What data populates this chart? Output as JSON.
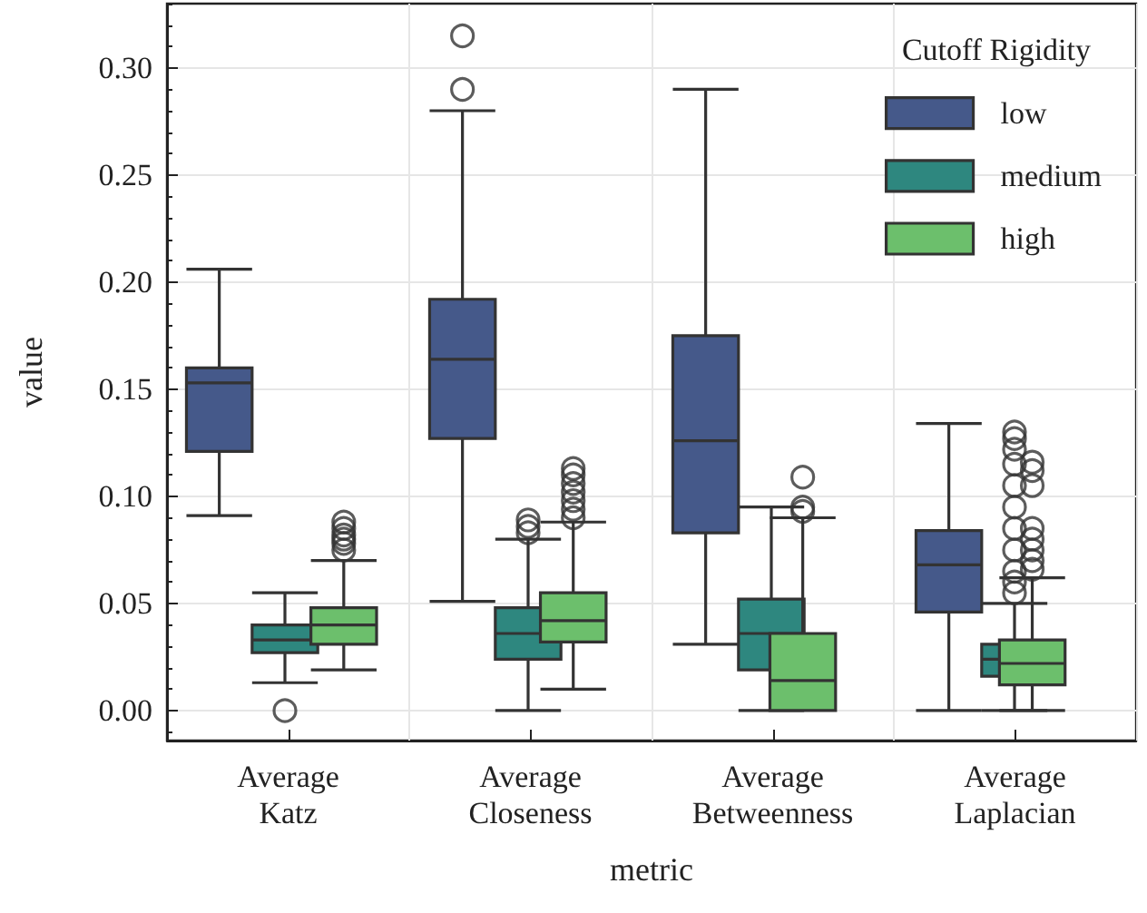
{
  "chart_data": {
    "type": "box",
    "xlabel": "metric",
    "ylabel": "value",
    "legend_title": "Cutoff Rigidity",
    "categories": [
      "Average\nKatz",
      "Average\nCloseness",
      "Average\nBetweenness",
      "Average\nLaplacian"
    ],
    "ylim": [
      -0.014,
      0.33
    ],
    "yticks": [
      {
        "value": 0,
        "label": "0.00"
      },
      0.05,
      {
        "value": 0.1,
        "label": "0.10"
      },
      0.15,
      {
        "value": 0.2,
        "label": "0.20"
      },
      0.25,
      {
        "value": 0.3,
        "label": "0.30"
      }
    ],
    "grid": true,
    "legend": "top right",
    "series": [
      {
        "name": "low",
        "color": "#45598a",
        "boxes": [
          {
            "low": 0.091,
            "q1": 0.121,
            "median": 0.153,
            "q3": 0.16,
            "high": 0.206
          },
          {
            "low": 0.051,
            "q1": 0.127,
            "median": 0.164,
            "q3": 0.192,
            "high": 0.28,
            "outliers": [
              0.29,
              0.315
            ]
          },
          {
            "low": 0.031,
            "q1": 0.083,
            "median": 0.126,
            "q3": 0.175,
            "high": 0.29
          },
          {
            "low": 0.0,
            "q1": 0.046,
            "median": 0.068,
            "q3": 0.084,
            "high": 0.134
          }
        ]
      },
      {
        "name": "medium",
        "color": "#2e877f",
        "boxes": [
          {
            "low": 0.013,
            "q1": 0.027,
            "median": 0.033,
            "q3": 0.04,
            "high": 0.055,
            "outliers": [
              0.0
            ]
          },
          {
            "low": 0.0,
            "q1": 0.024,
            "median": 0.036,
            "q3": 0.048,
            "high": 0.08,
            "outliers": [
              0.083,
              0.086,
              0.089
            ]
          },
          {
            "low": 0.0,
            "q1": 0.019,
            "median": 0.036,
            "q3": 0.052,
            "high": 0.095
          },
          {
            "low": 0.0,
            "q1": 0.016,
            "median": 0.024,
            "q3": 0.031,
            "high": 0.05,
            "outliers": [
              0.055,
              0.06,
              0.065,
              0.075,
              0.085,
              0.095,
              0.105,
              0.115,
              0.122,
              0.127,
              0.13
            ]
          }
        ]
      },
      {
        "name": "high",
        "color": "#6cbf6c",
        "boxes": [
          {
            "low": 0.019,
            "q1": 0.031,
            "median": 0.04,
            "q3": 0.048,
            "high": 0.07,
            "outliers": [
              0.075,
              0.078,
              0.08,
              0.082,
              0.085,
              0.088
            ]
          },
          {
            "low": 0.01,
            "q1": 0.032,
            "median": 0.042,
            "q3": 0.055,
            "high": 0.088,
            "outliers": [
              0.09,
              0.094,
              0.098,
              0.102,
              0.106,
              0.11,
              0.113
            ]
          },
          {
            "low": 0.0,
            "q1": 0.0,
            "median": 0.014,
            "q3": 0.036,
            "high": 0.09,
            "outliers": [
              0.093,
              0.095,
              0.109
            ]
          },
          {
            "low": 0.0,
            "q1": 0.012,
            "median": 0.022,
            "q3": 0.033,
            "high": 0.062,
            "outliers": [
              0.066,
              0.07,
              0.075,
              0.08,
              0.085,
              0.105,
              0.112,
              0.116
            ]
          }
        ]
      }
    ]
  }
}
